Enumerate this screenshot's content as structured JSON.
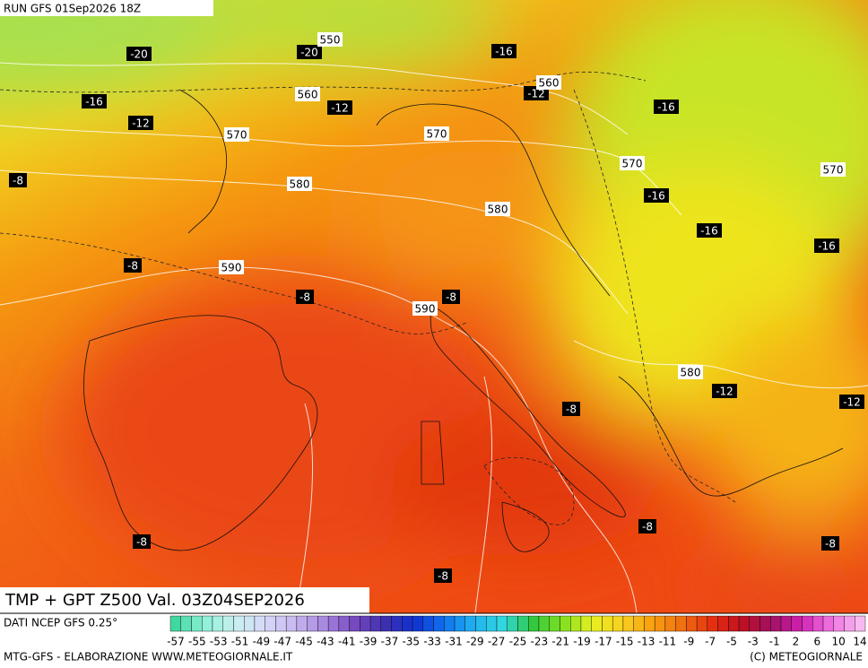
{
  "header": {
    "run": "RUN GFS 01Sep2026 18Z"
  },
  "map": {
    "title": "TMP + GPT Z500 Val. 03Z04SEP2026",
    "temperature_labels": [
      "-20",
      "-20",
      "-16",
      "-16",
      "-12",
      "-16",
      "-12",
      "-12",
      "-8",
      "-16",
      "-16",
      "-16",
      "-8",
      "-8",
      "-8",
      "-12",
      "-12",
      "-8",
      "-8",
      "-8",
      "-8",
      "-8"
    ],
    "height_labels": [
      "550",
      "560",
      "560",
      "570",
      "570",
      "570",
      "570",
      "580",
      "580",
      "590",
      "590",
      "580"
    ]
  },
  "legend": {
    "source": "DATI NCEP GFS 0.25°",
    "ticks": [
      "-57",
      "-55",
      "-53",
      "-51",
      "-49",
      "-47",
      "-45",
      "-43",
      "-41",
      "-39",
      "-37",
      "-35",
      "-33",
      "-31",
      "-29",
      "-27",
      "-25",
      "-23",
      "-21",
      "-19",
      "-17",
      "-15",
      "-13",
      "-11",
      "-9",
      "-7",
      "-5",
      "-3",
      "-1",
      "2",
      "6",
      "10",
      "14"
    ]
  },
  "footer": {
    "credit": "MTG-GFS - ELABORAZIONE WWW.METEOGIORNALE.IT",
    "copyright": "(C) METEOGIORNALE"
  }
}
